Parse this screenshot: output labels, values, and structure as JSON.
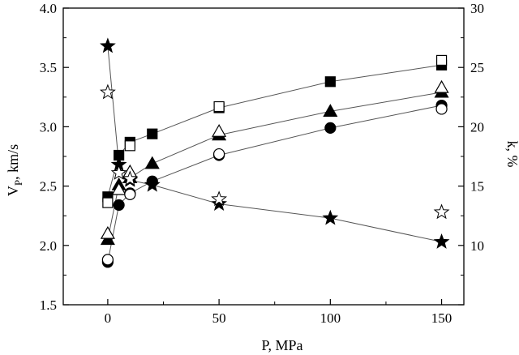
{
  "chart_data": {
    "type": "scatter",
    "xlabel": "P, MPa",
    "ylabel": "V",
    "ylabel_subscript": "P",
    "ylabel_suffix": ", km/s",
    "y2label": "k, %",
    "xlim": [
      -20,
      160
    ],
    "ylim": [
      1.5,
      4.0
    ],
    "y2lim": [
      5,
      30
    ],
    "xticks": [
      0,
      50,
      100,
      150
    ],
    "yticks": [
      1.5,
      2.0,
      2.5,
      3.0,
      3.5,
      4.0
    ],
    "y2ticks": [
      10,
      15,
      20,
      25,
      30
    ],
    "xtick_labels": [
      "0",
      "50",
      "100",
      "150"
    ],
    "ytick_labels": [
      "1.5",
      "2.0",
      "2.5",
      "3.0",
      "3.5",
      "4.0"
    ],
    "y2tick_labels": [
      "10",
      "15",
      "20",
      "25",
      "30"
    ],
    "grid": false,
    "series": [
      {
        "marker": "square",
        "fill": "filled",
        "axis": "left",
        "connected": true,
        "x": [
          0,
          5,
          10,
          20,
          50,
          100,
          150
        ],
        "y": [
          2.41,
          2.76,
          2.87,
          2.94,
          3.16,
          3.38,
          3.52
        ]
      },
      {
        "marker": "square",
        "fill": "open",
        "axis": "left",
        "connected": false,
        "x": [
          0,
          10,
          50,
          150
        ],
        "y": [
          2.36,
          2.84,
          3.17,
          3.56
        ]
      },
      {
        "marker": "triangle",
        "fill": "filled",
        "axis": "left",
        "connected": true,
        "x": [
          0,
          5,
          10,
          20,
          50,
          100,
          150
        ],
        "y": [
          2.05,
          2.51,
          2.57,
          2.69,
          2.93,
          3.13,
          3.29
        ]
      },
      {
        "marker": "triangle",
        "fill": "open",
        "axis": "left",
        "connected": false,
        "x": [
          0,
          5,
          10,
          50,
          150
        ],
        "y": [
          2.1,
          2.47,
          2.62,
          2.96,
          3.33
        ]
      },
      {
        "marker": "circle",
        "fill": "filled",
        "axis": "left",
        "connected": true,
        "x": [
          0,
          5,
          10,
          20,
          50,
          100,
          150
        ],
        "y": [
          1.86,
          2.34,
          2.44,
          2.54,
          2.76,
          2.99,
          3.18
        ]
      },
      {
        "marker": "circle",
        "fill": "open",
        "axis": "left",
        "connected": false,
        "x": [
          0,
          10,
          50,
          150
        ],
        "y": [
          1.88,
          2.43,
          2.77,
          3.15
        ]
      },
      {
        "marker": "star",
        "fill": "filled",
        "axis": "right",
        "connected": true,
        "x": [
          0,
          5,
          10,
          20,
          50,
          100,
          150
        ],
        "y": [
          26.8,
          16.8,
          15.5,
          15.1,
          13.5,
          12.3,
          10.3
        ]
      },
      {
        "marker": "star",
        "fill": "open",
        "axis": "right",
        "connected": false,
        "x": [
          0,
          5,
          10,
          50,
          150
        ],
        "y": [
          22.9,
          16.1,
          15.6,
          13.9,
          12.8
        ]
      }
    ]
  }
}
